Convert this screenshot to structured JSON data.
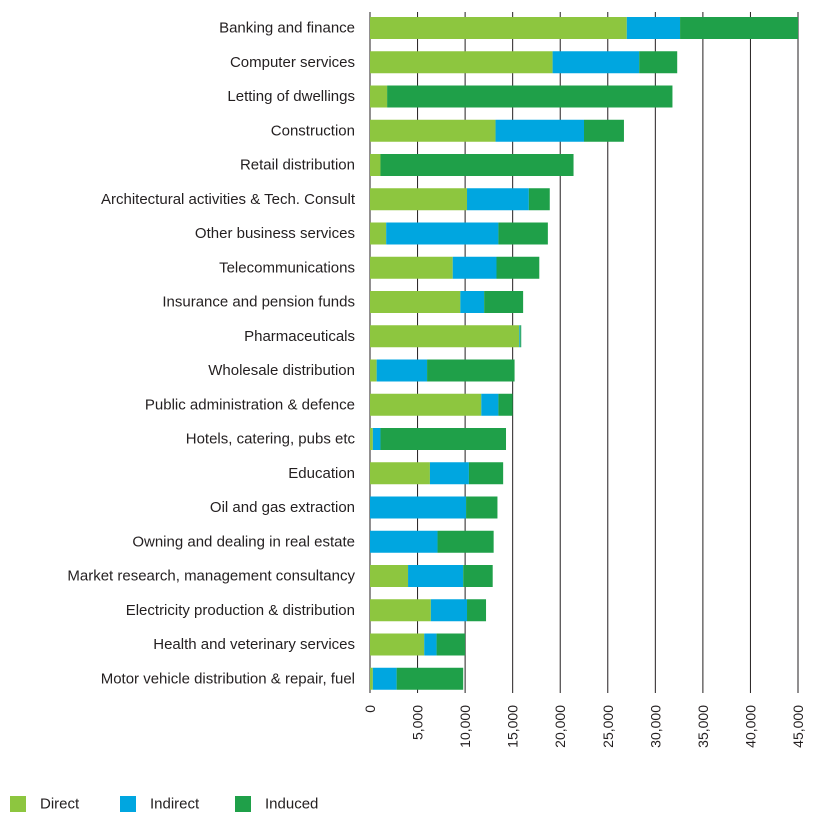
{
  "chart_data": {
    "type": "bar",
    "orientation": "horizontal",
    "stacked": true,
    "categories": [
      "Banking and finance",
      "Computer services",
      "Letting of dwellings",
      "Construction",
      "Retail distribution",
      "Architectural activities & Tech. Consult",
      "Other business services",
      "Telecommunications",
      "Insurance and pension funds",
      "Pharmaceuticals",
      "Wholesale distribution",
      "Public administration & defence",
      "Hotels, catering, pubs etc",
      "Education",
      "Oil and gas extraction",
      "Owning and dealing in real estate",
      "Market research, management consultancy",
      "Electricity production & distribution",
      "Health and veterinary services",
      "Motor vehicle distribution & repair, fuel"
    ],
    "series": [
      {
        "name": "Direct",
        "color": "#8dc63f",
        "values": [
          27000,
          19200,
          1800,
          13200,
          1100,
          10200,
          1700,
          8700,
          9500,
          15700,
          700,
          11700,
          300,
          6300,
          0,
          0,
          4000,
          6400,
          5700,
          300
        ]
      },
      {
        "name": "Indirect",
        "color": "#00a6e0",
        "values": [
          5600,
          9100,
          0,
          9300,
          0,
          6500,
          11800,
          4600,
          2500,
          100,
          5300,
          1800,
          800,
          4100,
          10100,
          7100,
          5800,
          3800,
          1300,
          2500
        ]
      },
      {
        "name": "Induced",
        "color": "#1fa049",
        "values": [
          12400,
          4000,
          30000,
          4200,
          20300,
          2200,
          5200,
          4500,
          4100,
          100,
          9200,
          1500,
          13200,
          3600,
          3300,
          5900,
          3100,
          2000,
          3000,
          7000
        ]
      }
    ],
    "xlim": [
      0,
      45000
    ],
    "xticks": [
      "0",
      "5,000",
      "10,000",
      "15,000",
      "20,000",
      "25,000",
      "30,000",
      "35,000",
      "40,000",
      "45,000"
    ],
    "xtick_values": [
      0,
      5000,
      10000,
      15000,
      20000,
      25000,
      30000,
      35000,
      40000,
      45000
    ],
    "grid": "vertical",
    "legend_position": "bottom-left"
  }
}
